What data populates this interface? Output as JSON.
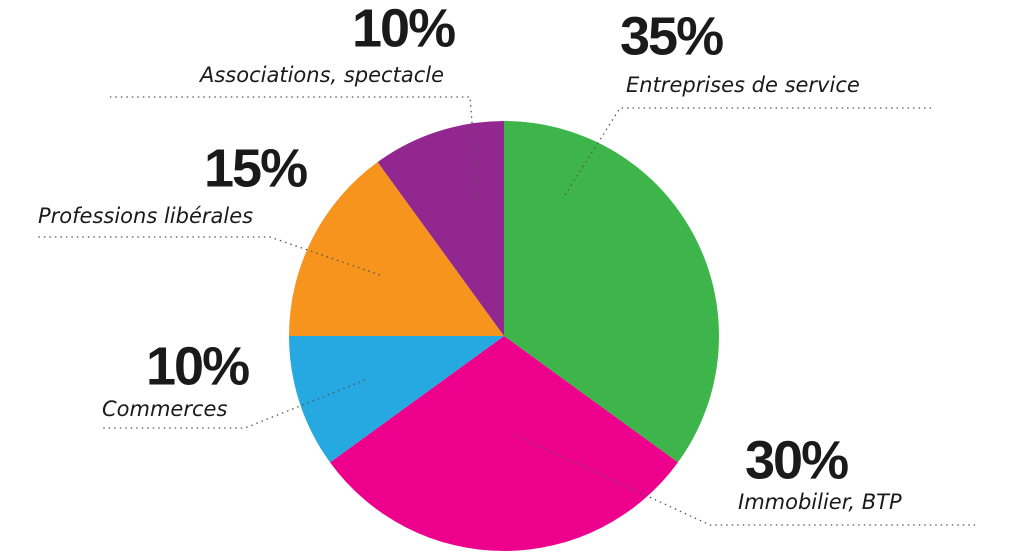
{
  "chart_data": {
    "type": "pie",
    "categories": [
      "Entreprises de service",
      "Immobilier, BTP",
      "Commerces",
      "Professions libérales",
      "Associations, spectacle"
    ],
    "values": [
      35,
      30,
      10,
      15,
      10
    ],
    "value_labels": [
      "35%",
      "30%",
      "10%",
      "15%",
      "10%"
    ],
    "colors": [
      "#3db54a",
      "#ec008c",
      "#25a9e0",
      "#f7941d",
      "#92278f"
    ]
  }
}
